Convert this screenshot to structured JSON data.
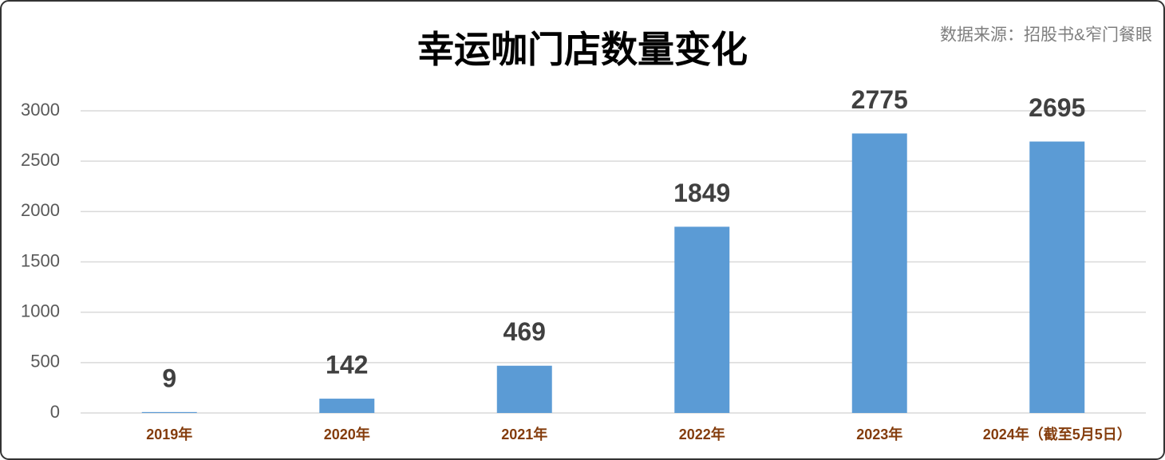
{
  "chart_data": {
    "type": "bar",
    "title": "幸运咖门店数量变化",
    "source": "数据来源：招股书&窄门餐眼",
    "categories": [
      "2019年",
      "2020年",
      "2021年",
      "2022年",
      "2023年",
      "2024年（截至5月5日）"
    ],
    "values": [
      9,
      142,
      469,
      1849,
      2775,
      2695
    ],
    "color": "#5b9bd5",
    "ylim": [
      0,
      3000
    ],
    "yticks": [
      0,
      500,
      1000,
      1500,
      2000,
      2500,
      3000
    ],
    "grid": true
  }
}
